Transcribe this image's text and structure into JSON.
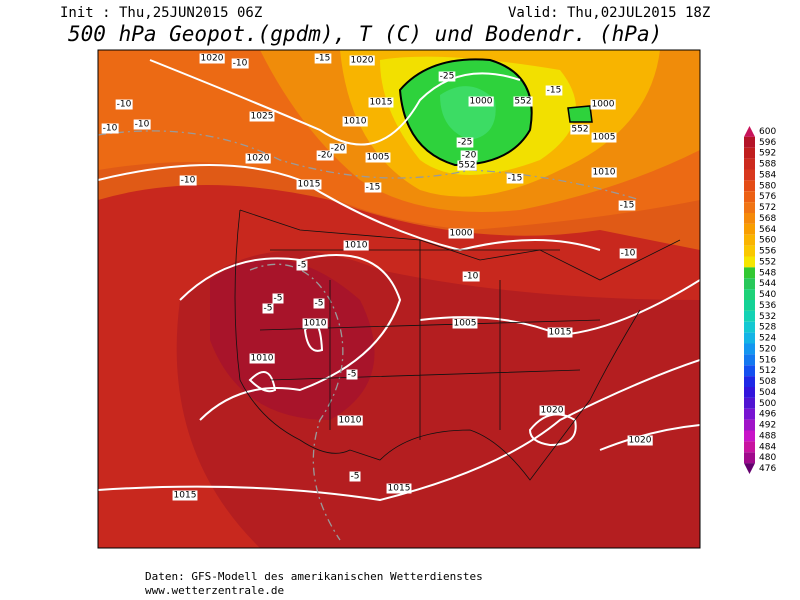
{
  "header": {
    "init": "Init : Thu,25JUN2015 06Z",
    "valid": "Valid: Thu,02JUL2015 18Z",
    "title": "500 hPa Geopot.(gpdm), T (C) und Bodendr. (hPa)"
  },
  "map": {
    "isobar_labels": [
      1020,
      1020,
      1015,
      1010,
      1005,
      1000,
      1000,
      1025,
      1020,
      1015,
      1005,
      1010,
      1010,
      1000,
      1005,
      1015,
      1010,
      1010,
      1010,
      1020,
      1020,
      1015,
      1015
    ],
    "height_labels": [
      552,
      552,
      552
    ],
    "temperature_labels": [
      -10,
      -15,
      -10,
      -10,
      -10,
      -25,
      -15,
      -10,
      -20,
      -20,
      -15,
      -25,
      -20,
      -15,
      -15,
      -10,
      -10,
      -5,
      -5,
      -5,
      -5,
      -5,
      -5
    ]
  },
  "colorbar": {
    "ticks": [
      600,
      596,
      592,
      588,
      584,
      580,
      576,
      572,
      568,
      564,
      560,
      556,
      552,
      548,
      544,
      540,
      536,
      532,
      528,
      524,
      520,
      516,
      512,
      508,
      504,
      500,
      496,
      492,
      488,
      484,
      480,
      476
    ],
    "colors": [
      "#c8145a",
      "#b41428",
      "#c01e1e",
      "#cc2a1e",
      "#d8381e",
      "#e44c16",
      "#ec6014",
      "#f07414",
      "#f58a0a",
      "#f89e00",
      "#fab400",
      "#fac800",
      "#f5e600",
      "#32c832",
      "#28c85a",
      "#1ed278",
      "#14d296",
      "#14d2b4",
      "#14c8d2",
      "#14b4e6",
      "#1496f0",
      "#1478f0",
      "#1450f0",
      "#1e28e6",
      "#3214dc",
      "#5014d2",
      "#7814d2",
      "#a014c8",
      "#c814c8",
      "#c814a0",
      "#a00a8c",
      "#64006e"
    ]
  },
  "footer": {
    "source": "Daten: GFS-Modell des amerikanischen Wetterdienstes",
    "site": "www.wetterzentrale.de"
  }
}
